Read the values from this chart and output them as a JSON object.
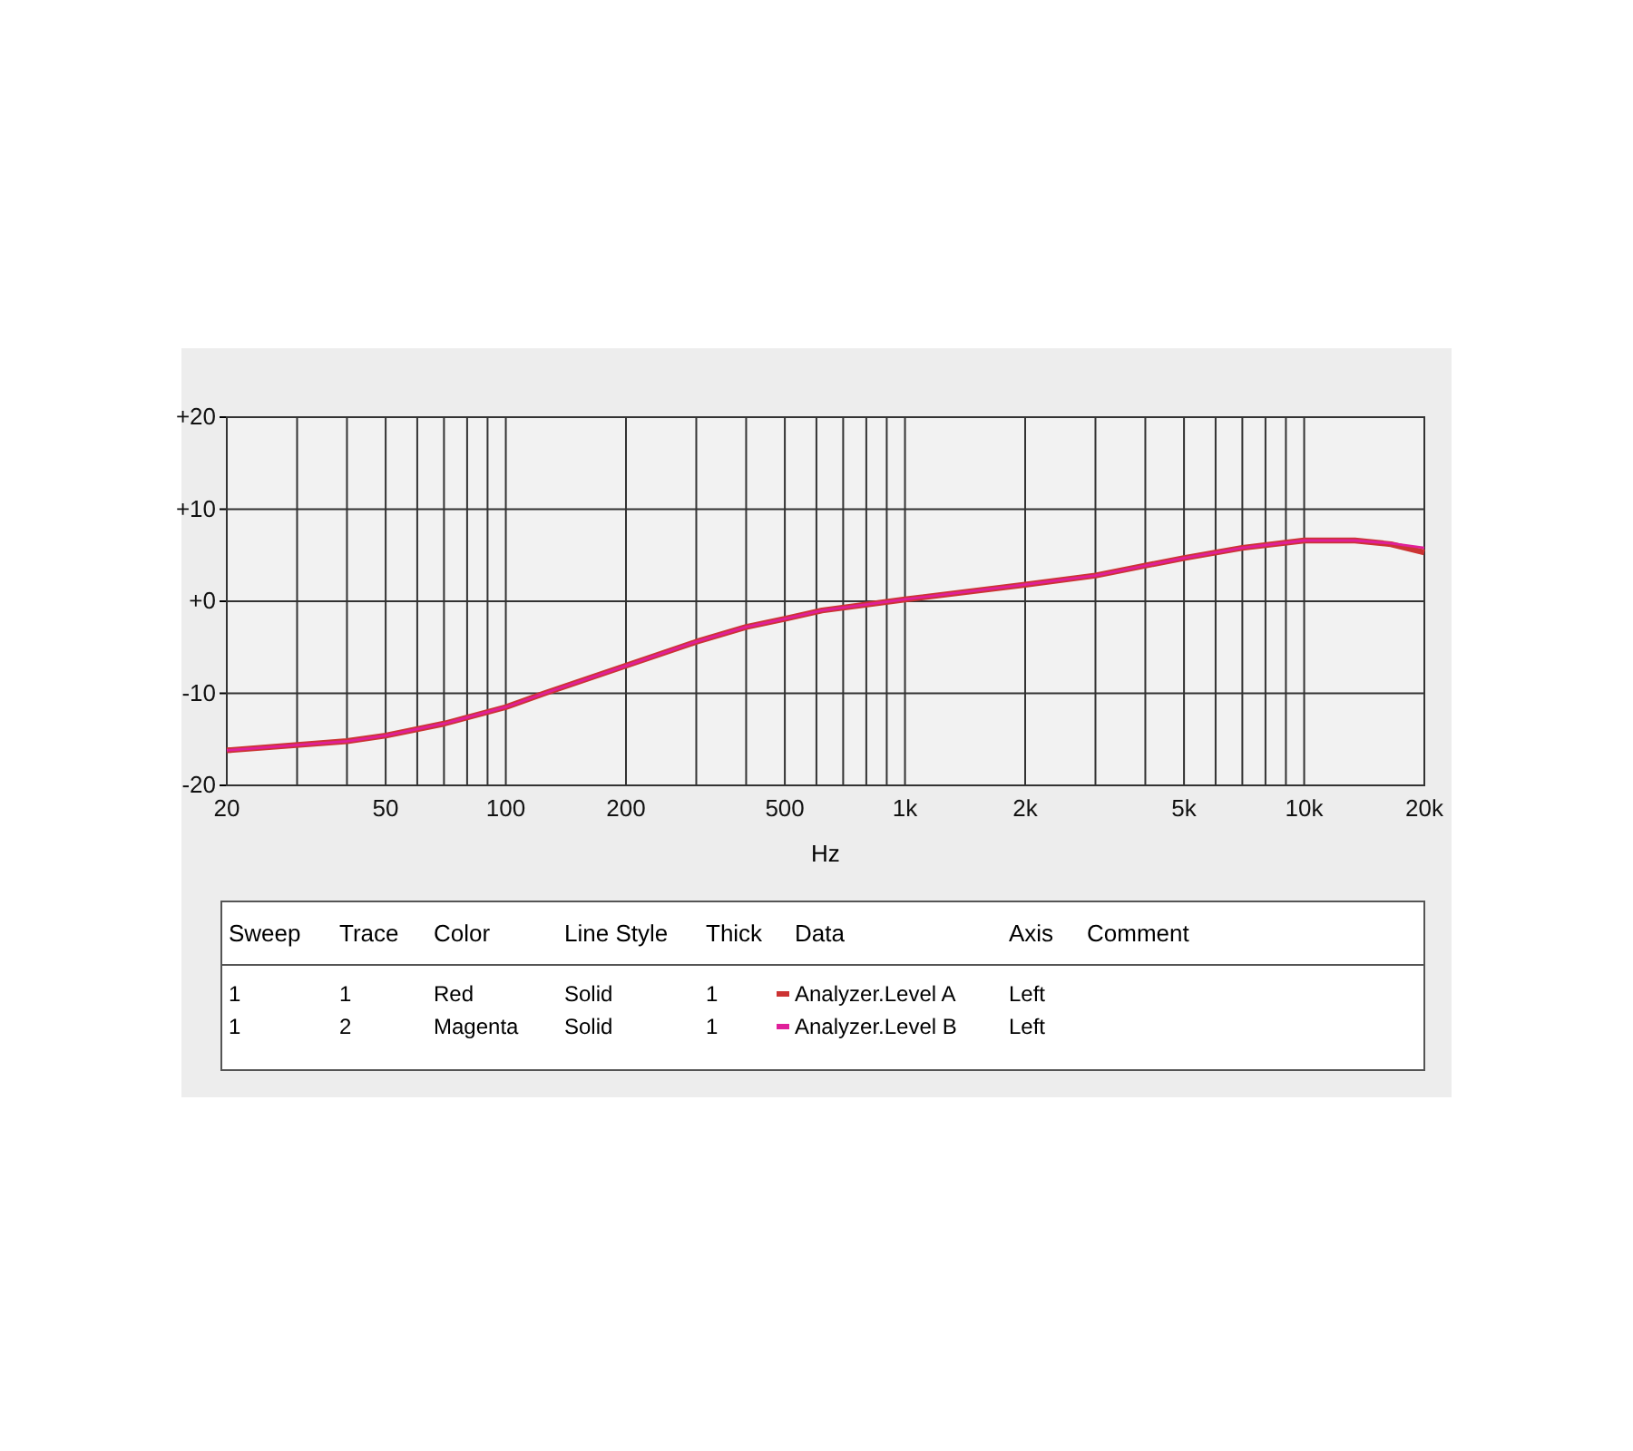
{
  "chart_data": {
    "type": "line",
    "xlabel": "Hz",
    "log": "x",
    "xlim": [
      20,
      20000
    ],
    "ylim": [
      -20,
      20
    ],
    "xticks": [
      20,
      {
        "value": 30,
        "label": null
      },
      {
        "value": 40,
        "label": null
      },
      50,
      {
        "value": 60,
        "label": null
      },
      {
        "value": 70,
        "label": null
      },
      {
        "value": 80,
        "label": null
      },
      {
        "value": 90,
        "label": null
      },
      100,
      200,
      {
        "value": 300,
        "label": null
      },
      {
        "value": 400,
        "label": null
      },
      500,
      {
        "value": 600,
        "label": null
      },
      {
        "value": 700,
        "label": null
      },
      {
        "value": 800,
        "label": null
      },
      {
        "value": 900,
        "label": null
      },
      {
        "value": 1000,
        "label": "1k"
      },
      {
        "value": 2000,
        "label": "2k"
      },
      {
        "value": 3000,
        "label": null
      },
      {
        "value": 4000,
        "label": null
      },
      {
        "value": 5000,
        "label": "5k"
      },
      {
        "value": 6000,
        "label": null
      },
      {
        "value": 7000,
        "label": null
      },
      {
        "value": 8000,
        "label": null
      },
      {
        "value": 9000,
        "label": null
      },
      {
        "value": 10000,
        "label": "10k"
      },
      {
        "value": 20000,
        "label": "20k"
      }
    ],
    "yticks": [
      {
        "value": 20,
        "label": "+20"
      },
      {
        "value": 10,
        "label": "+10"
      },
      {
        "value": 0,
        "label": "+0"
      },
      -10,
      -20
    ],
    "grid": true,
    "legend": "bottom",
    "line_style": "solid",
    "marker": "none",
    "x": [
      20,
      40,
      50,
      70,
      100,
      125,
      200,
      300,
      400,
      500,
      620,
      1000,
      2000,
      3000,
      5000,
      7000,
      10000,
      13400,
      16500,
      20000
    ],
    "series": [
      {
        "name": "Analyzer.Level A",
        "color": "#cc3333",
        "values": [
          -16.2,
          -15.2,
          -14.6,
          -13.3,
          -11.5,
          -10.0,
          -7.0,
          -4.4,
          -2.8,
          -1.9,
          -1.0,
          0.2,
          1.8,
          2.8,
          4.7,
          5.8,
          6.6,
          6.6,
          6.2,
          5.3
        ]
      },
      {
        "name": "Analyzer.Level B",
        "color": "#e0209a",
        "values": [
          -16.2,
          -15.2,
          -14.6,
          -13.3,
          -11.5,
          -10.0,
          -7.0,
          -4.4,
          -2.8,
          -1.9,
          -1.0,
          0.2,
          1.8,
          2.8,
          4.7,
          5.8,
          6.6,
          6.6,
          6.3,
          5.8
        ]
      }
    ],
    "annotations": [
      "Sweep",
      "Trace",
      "Color",
      "Line Style",
      "Thick",
      "Data",
      "Axis",
      "Comment",
      "1",
      "1",
      "Red",
      "Solid",
      "1",
      "Left",
      "1",
      "2",
      "Magenta",
      "Solid",
      "1",
      "Left"
    ]
  }
}
